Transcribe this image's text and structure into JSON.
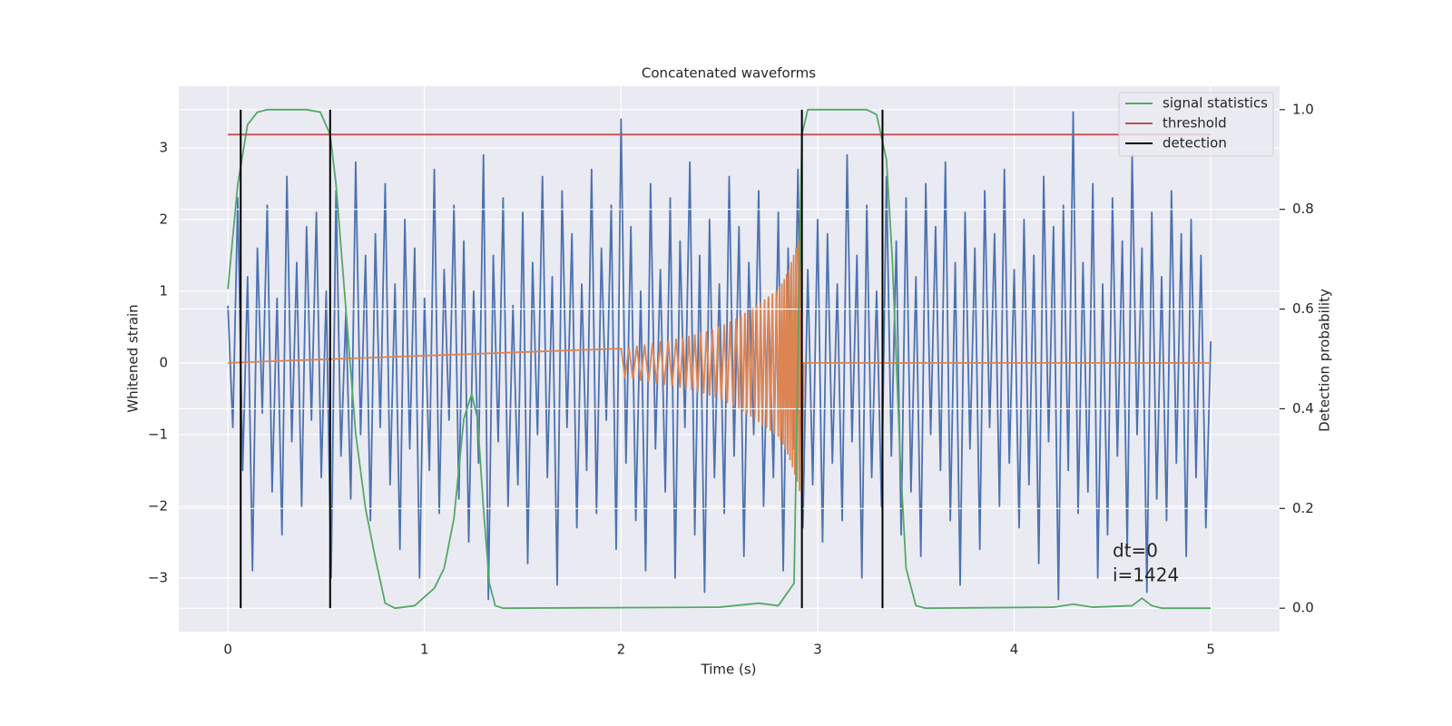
{
  "chart_data": {
    "type": "line",
    "title": "Concatenated waveforms",
    "xlabel": "Time (s)",
    "ylabel": "Whitened strain",
    "y2label": "Detection probability",
    "annotations": [
      "dt=0",
      "i=1424"
    ],
    "xlim": [
      -0.25,
      5.35
    ],
    "ylim": [
      -3.75,
      3.86
    ],
    "y2lim": [
      -0.047,
      1.047
    ],
    "xticks": [
      0,
      1,
      2,
      3,
      4,
      5
    ],
    "yticks": [
      {
        "value": -3,
        "label": "−3"
      },
      {
        "value": -2,
        "label": "−2"
      },
      {
        "value": -1,
        "label": "−1"
      },
      0,
      1,
      2,
      3
    ],
    "y2ticks": [
      {
        "value": 0,
        "label": "0.0"
      },
      {
        "value": 0.2,
        "label": "0.2"
      },
      {
        "value": 0.4,
        "label": "0.4"
      },
      {
        "value": 0.6,
        "label": "0.6"
      },
      {
        "value": 0.8,
        "label": "0.8"
      },
      {
        "value": 1,
        "label": "1.0"
      }
    ],
    "grid": true,
    "legend": "upper right",
    "series": [
      {
        "color": "#4c72b0",
        "x": [
          0,
          0.025,
          0.05,
          0.075,
          0.1,
          0.125,
          0.15,
          0.175,
          0.2,
          0.225,
          0.25,
          0.275,
          0.3,
          0.325,
          0.35,
          0.375,
          0.4,
          0.425,
          0.45,
          0.475,
          0.5,
          0.525,
          0.55,
          0.575,
          0.6,
          0.625,
          0.65,
          0.675,
          0.7,
          0.725,
          0.75,
          0.775,
          0.8,
          0.825,
          0.85,
          0.875,
          0.9,
          0.925,
          0.95,
          0.975,
          1,
          1.025,
          1.05,
          1.075,
          1.1,
          1.125,
          1.15,
          1.175,
          1.2,
          1.225,
          1.25,
          1.275,
          1.3,
          1.325,
          1.35,
          1.375,
          1.4,
          1.425,
          1.45,
          1.475,
          1.5,
          1.525,
          1.55,
          1.575,
          1.6,
          1.625,
          1.65,
          1.675,
          1.7,
          1.725,
          1.75,
          1.775,
          1.8,
          1.825,
          1.85,
          1.875,
          1.9,
          1.925,
          1.95,
          1.975,
          2,
          2.025,
          2.05,
          2.075,
          2.1,
          2.125,
          2.15,
          2.175,
          2.2,
          2.225,
          2.25,
          2.275,
          2.3,
          2.325,
          2.35,
          2.375,
          2.4,
          2.425,
          2.45,
          2.475,
          2.5,
          2.525,
          2.55,
          2.575,
          2.6,
          2.625,
          2.65,
          2.675,
          2.7,
          2.725,
          2.75,
          2.775,
          2.8,
          2.825,
          2.85,
          2.875,
          2.9,
          2.925,
          2.95,
          2.975,
          3,
          3.025,
          3.05,
          3.075,
          3.1,
          3.125,
          3.15,
          3.175,
          3.2,
          3.225,
          3.25,
          3.275,
          3.3,
          3.325,
          3.35,
          3.375,
          3.4,
          3.425,
          3.45,
          3.475,
          3.5,
          3.525,
          3.55,
          3.575,
          3.6,
          3.625,
          3.65,
          3.675,
          3.7,
          3.725,
          3.75,
          3.775,
          3.8,
          3.825,
          3.85,
          3.875,
          3.9,
          3.925,
          3.95,
          3.975,
          4,
          4.025,
          4.05,
          4.075,
          4.1,
          4.125,
          4.15,
          4.175,
          4.2,
          4.225,
          4.25,
          4.275,
          4.3,
          4.325,
          4.35,
          4.375,
          4.4,
          4.425,
          4.45,
          4.475,
          4.5,
          4.525,
          4.55,
          4.575,
          4.6,
          4.625,
          4.65,
          4.675,
          4.7,
          4.725,
          4.75,
          4.775,
          4.8,
          4.825,
          4.85,
          4.875,
          4.9,
          4.925,
          4.95,
          4.975,
          5
        ],
        "values": [
          0.8,
          -0.9,
          2.3,
          -1.5,
          1.2,
          -2.9,
          1.6,
          -0.7,
          2.2,
          -1.8,
          0.9,
          -2.4,
          2.6,
          -1.1,
          1.4,
          -2.0,
          1.9,
          -0.8,
          2.1,
          -1.6,
          1.0,
          -3.0,
          2.4,
          -1.3,
          0.7,
          -1.9,
          2.8,
          -1.0,
          1.5,
          -2.2,
          1.8,
          -0.9,
          2.5,
          -1.7,
          1.1,
          -2.6,
          2.0,
          -1.2,
          1.6,
          -3.0,
          0.9,
          -1.5,
          2.7,
          -2.1,
          1.3,
          -0.8,
          2.2,
          -1.9,
          1.7,
          -2.5,
          1.0,
          -1.4,
          2.9,
          -3.3,
          1.5,
          -1.1,
          2.3,
          -2.0,
          0.8,
          -1.7,
          2.1,
          -2.8,
          1.4,
          -1.0,
          2.6,
          -1.6,
          1.2,
          -3.1,
          2.4,
          -0.9,
          1.8,
          -2.3,
          1.1,
          -1.5,
          2.7,
          -2.1,
          1.6,
          -0.8,
          2.2,
          -2.6,
          3.4,
          -1.4,
          1.9,
          -2.2,
          1.0,
          -2.9,
          2.5,
          -1.2,
          1.3,
          -1.8,
          2.3,
          -3.0,
          1.7,
          -0.9,
          2.8,
          -2.4,
          1.5,
          -3.2,
          2.0,
          -1.6,
          1.1,
          -2.1,
          2.6,
          -1.3,
          1.9,
          -2.7,
          1.4,
          -1.0,
          2.4,
          -2.0,
          0.9,
          -1.6,
          2.1,
          -2.9,
          1.6,
          -1.2,
          2.7,
          -2.3,
          1.3,
          -1.7,
          2.0,
          -2.5,
          1.8,
          -1.4,
          1.1,
          -2.2,
          2.9,
          -1.1,
          1.5,
          -3.0,
          2.2,
          -1.6,
          1.0,
          -2.0,
          2.6,
          -1.3,
          1.7,
          -2.4,
          2.3,
          -1.8,
          1.2,
          -2.7,
          2.5,
          -1.0,
          1.9,
          -1.5,
          2.8,
          -2.2,
          1.4,
          -3.1,
          2.1,
          -1.2,
          1.6,
          -2.6,
          2.4,
          -0.9,
          1.8,
          -2.0,
          2.7,
          -1.4,
          1.3,
          -2.3,
          2.0,
          -1.7,
          1.5,
          -2.8,
          2.6,
          -1.1,
          1.9,
          -3.3,
          2.2,
          -1.5,
          3.5,
          -2.1,
          1.4,
          -1.8,
          2.5,
          -3.0,
          1.1,
          -2.4,
          2.3,
          -1.3,
          1.7,
          -2.6,
          2.9,
          -1.0,
          1.6,
          -3.2,
          2.1,
          -1.9,
          1.2,
          -2.2,
          2.4,
          -1.4,
          1.8,
          -2.7,
          2.0,
          -1.6,
          1.5,
          -2.3,
          0.3
        ]
      },
      {
        "color": "#dd8452",
        "x": [
          0,
          2.0,
          2.02,
          2.04,
          2.06,
          2.08,
          2.1,
          2.12,
          2.14,
          2.16,
          2.18,
          2.2,
          2.22,
          2.24,
          2.26,
          2.28,
          2.3,
          2.315,
          2.33,
          2.345,
          2.36,
          2.375,
          2.39,
          2.405,
          2.42,
          2.435,
          2.45,
          2.465,
          2.48,
          2.495,
          2.51,
          2.525,
          2.54,
          2.555,
          2.57,
          2.585,
          2.6,
          2.61,
          2.62,
          2.63,
          2.64,
          2.65,
          2.66,
          2.67,
          2.68,
          2.69,
          2.7,
          2.71,
          2.72,
          2.73,
          2.74,
          2.75,
          2.76,
          2.77,
          2.78,
          2.79,
          2.8,
          2.806,
          2.812,
          2.818,
          2.824,
          2.83,
          2.836,
          2.842,
          2.848,
          2.854,
          2.86,
          2.866,
          2.872,
          2.878,
          2.884,
          2.89,
          2.896,
          2.902,
          2.908,
          2.914,
          2.92,
          2.93,
          5
        ],
        "values": [
          0,
          0.2,
          -0.2,
          0.21,
          -0.22,
          0.23,
          -0.24,
          0.25,
          -0.26,
          0.27,
          -0.28,
          0.29,
          -0.3,
          0.31,
          -0.32,
          0.33,
          -0.34,
          0.35,
          -0.36,
          0.37,
          -0.38,
          0.39,
          -0.4,
          0.41,
          -0.42,
          0.43,
          -0.45,
          0.46,
          -0.48,
          0.5,
          -0.51,
          0.53,
          -0.55,
          0.57,
          -0.59,
          0.61,
          -0.63,
          0.65,
          -0.67,
          0.69,
          -0.7,
          0.72,
          -0.74,
          0.76,
          -0.78,
          0.8,
          -0.82,
          0.84,
          -0.86,
          0.88,
          -0.9,
          0.92,
          -0.94,
          0.96,
          -0.98,
          1.0,
          -1.02,
          1.05,
          -1.08,
          1.1,
          -1.13,
          1.16,
          -1.2,
          1.23,
          -1.27,
          1.3,
          -1.35,
          1.4,
          -1.45,
          1.5,
          -1.55,
          1.6,
          -1.65,
          1.7,
          -1.78,
          1.85,
          -1.9,
          0,
          0
        ]
      },
      {
        "name": "signal statistics",
        "color": "#55a868",
        "axis": "y2",
        "x": [
          0,
          0.05,
          0.1,
          0.15,
          0.2,
          0.4,
          0.47,
          0.52,
          0.55,
          0.6,
          0.65,
          0.7,
          0.75,
          0.8,
          0.85,
          0.95,
          1.05,
          1.1,
          1.15,
          1.2,
          1.24,
          1.27,
          1.3,
          1.33,
          1.36,
          1.4,
          2.5,
          2.7,
          2.8,
          2.88,
          2.9,
          2.92,
          2.95,
          3.25,
          3.3,
          3.35,
          3.38,
          3.42,
          3.45,
          3.5,
          3.55,
          4.2,
          4.3,
          4.4,
          4.6,
          4.65,
          4.7,
          4.75,
          5
        ],
        "values": [
          0.64,
          0.85,
          0.97,
          0.995,
          1.0,
          1.0,
          0.995,
          0.95,
          0.85,
          0.6,
          0.35,
          0.2,
          0.1,
          0.01,
          0.0,
          0.005,
          0.04,
          0.08,
          0.18,
          0.38,
          0.43,
          0.38,
          0.2,
          0.05,
          0.005,
          0,
          0.002,
          0.01,
          0.005,
          0.05,
          0.5,
          0.95,
          1.0,
          1.0,
          0.99,
          0.9,
          0.7,
          0.3,
          0.08,
          0.005,
          0,
          0.002,
          0.008,
          0.002,
          0.005,
          0.02,
          0.005,
          0,
          0
        ]
      },
      {
        "name": "threshold",
        "color": "#c44e52",
        "axis": "y2",
        "x": [
          0,
          5
        ],
        "values": [
          0.95,
          0.95
        ]
      },
      {
        "name": "detection",
        "type": "vline",
        "color": "#000000",
        "axis": "y2",
        "x": [
          0.065,
          0.52,
          2.92,
          3.33
        ],
        "ymin": 0,
        "ymax": 1
      }
    ]
  }
}
